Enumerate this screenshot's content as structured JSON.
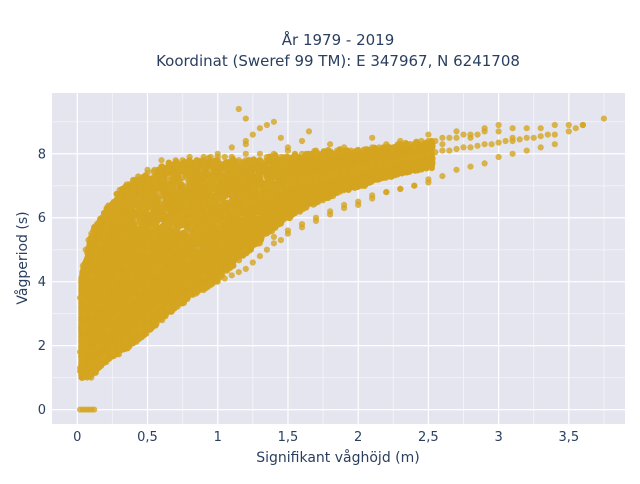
{
  "chart_data": {
    "type": "scatter",
    "title_line1": "År 1979 - 2019",
    "title_line2": "Koordinat (Sweref 99 TM): E 347967, N 6241708",
    "xlabel": "Signifikant våghöjd (m)",
    "ylabel": "Vågperiod (s)",
    "xlim": [
      -0.18,
      3.9
    ],
    "ylim": [
      -0.45,
      9.9
    ],
    "x_ticks": [
      0,
      0.5,
      1,
      1.5,
      2,
      2.5,
      3,
      3.5
    ],
    "x_tick_labels": [
      "0",
      "0,5",
      "1",
      "1,5",
      "2",
      "2,5",
      "3",
      "3,5"
    ],
    "y_ticks": [
      0,
      2,
      4,
      6,
      8
    ],
    "y_tick_labels": [
      "0",
      "2",
      "4",
      "6",
      "8"
    ],
    "grid": true,
    "marker_color": "#d4a520",
    "background_color": "#e5e5ef",
    "series": [
      {
        "values_x": [
          0.02,
          0.04,
          0.06,
          0.08,
          0.1,
          0.12,
          0.02,
          0.03,
          0.04,
          0.05,
          0.06,
          0.05,
          0.07,
          0.08,
          0.09,
          0.1,
          0.12,
          0.15,
          0.18,
          0.22,
          0.26,
          0.3,
          0.35,
          0.4,
          0.45,
          0.5,
          0.55,
          0.6,
          0.65,
          0.7,
          0.75,
          0.8,
          0.85,
          0.9,
          0.95,
          1.0,
          1.05,
          1.1,
          1.15,
          1.2,
          1.25,
          1.3,
          1.35,
          1.4,
          1.45,
          1.5,
          1.55,
          1.6,
          1.65,
          1.7,
          1.75,
          1.8,
          1.85,
          1.9,
          1.95,
          2.0,
          2.05,
          2.1,
          2.15,
          2.2,
          2.25,
          2.3,
          2.35,
          2.4,
          2.45,
          2.5,
          2.55,
          2.6,
          2.65,
          2.7,
          2.75,
          2.8,
          2.85,
          2.9,
          2.95,
          3.0,
          3.05,
          3.1,
          3.15,
          3.2,
          3.25,
          3.3,
          3.35,
          3.4,
          3.5,
          3.55,
          3.6,
          3.75,
          0.6,
          0.7,
          0.8,
          0.9,
          1.0,
          1.1,
          1.2,
          1.3,
          1.4,
          1.5,
          0.5,
          0.6,
          0.7,
          0.8,
          0.9,
          1.0,
          1.1,
          1.2,
          0.25,
          0.3,
          0.35,
          0.4,
          0.45,
          0.5,
          0.55,
          0.6,
          0.65,
          0.7,
          0.75,
          0.8,
          0.85,
          0.9,
          0.95,
          1.0,
          1.05,
          1.1,
          1.15,
          1.2,
          1.25,
          1.3,
          1.35,
          1.4,
          1.45,
          1.5,
          1.55,
          1.6,
          1.65,
          1.7,
          1.75,
          1.8,
          1.85,
          1.9,
          1.95,
          2.0,
          2.05,
          2.1,
          2.15,
          2.2,
          2.25,
          2.3,
          2.35,
          2.4,
          2.45,
          2.5,
          2.55,
          2.6,
          2.65,
          2.7,
          2.75,
          2.8,
          2.85,
          2.9,
          3.0,
          3.1,
          3.2,
          3.3,
          3.4,
          3.5,
          3.6,
          1.15,
          1.2,
          1.2,
          1.25,
          1.3,
          1.35,
          1.4,
          1.45,
          1.5,
          1.55,
          1.6,
          1.65,
          1.7,
          1.75,
          1.8,
          1.85,
          1.9,
          2.0,
          2.1,
          2.2,
          2.3,
          2.4,
          2.5,
          2.6,
          2.7,
          2.8,
          2.9,
          3.0,
          3.1,
          0.02,
          0.05,
          0.08,
          0.1,
          0.13,
          0.16,
          0.2,
          0.25,
          0.3,
          0.35,
          0.4,
          0.45,
          0.5,
          0.55,
          0.6,
          0.65,
          0.7,
          0.75,
          0.8,
          0.85,
          0.9,
          0.95,
          1.0,
          1.05,
          1.1,
          1.15,
          1.2,
          1.25,
          1.3,
          1.35,
          1.4,
          1.45,
          1.5,
          1.6,
          1.7,
          1.8,
          1.9,
          2.0,
          2.1,
          2.2,
          2.3,
          2.4,
          2.5,
          0.05,
          0.1,
          0.15,
          0.2,
          0.25,
          0.3,
          0.35,
          0.4,
          0.45,
          0.5,
          0.55,
          0.6,
          0.65,
          0.7,
          0.75,
          0.8,
          0.85,
          0.9,
          0.95,
          1.0,
          1.05,
          1.1,
          1.15,
          1.2,
          1.25,
          1.3,
          1.35,
          1.4,
          1.5,
          1.6,
          1.7,
          1.8,
          1.9,
          2.0,
          2.1,
          2.2,
          2.3,
          2.4,
          0.02,
          0.04,
          0.06,
          0.08,
          0.1,
          0.12,
          0.14,
          0.16,
          0.18,
          0.2,
          0.22,
          0.24,
          0.26,
          0.28,
          0.3,
          0.35,
          0.4,
          0.45,
          0.5,
          0.55,
          0.6,
          0.65,
          0.7,
          0.75,
          0.8,
          0.85,
          0.9,
          0.95,
          1.0,
          1.05,
          1.1,
          1.2,
          1.3,
          0.02,
          0.03,
          0.04,
          0.05,
          0.06,
          0.08,
          0.1,
          0.12,
          0.14,
          0.16,
          0.18,
          0.2,
          0.22,
          0.25,
          0.28,
          0.3,
          0.33,
          0.36,
          0.4,
          0.45,
          0.5,
          0.55,
          0.6,
          0.65,
          0.7,
          0.75,
          0.8,
          0.05,
          0.08,
          0.1,
          0.12,
          0.15,
          0.18,
          0.2,
          0.25,
          0.3,
          0.35,
          0.4,
          0.45,
          0.5,
          0.55,
          0.6,
          0.7,
          0.8,
          0.9,
          1.0,
          1.1,
          1.2,
          1.3,
          1.4,
          1.5,
          1.6,
          1.7,
          1.8,
          1.9,
          2.0,
          2.1,
          2.2,
          2.3,
          2.4,
          2.5,
          2.6,
          2.7,
          2.8,
          2.9,
          3.0,
          3.1,
          3.2,
          3.3,
          3.4
        ],
        "values_y": [
          0,
          0,
          0,
          0,
          0,
          0,
          1.3,
          1.5,
          1.7,
          1.9,
          2.1,
          1.2,
          1.0,
          1.1,
          1.3,
          1.5,
          1.8,
          2.0,
          2.3,
          2.5,
          2.8,
          3.0,
          3.3,
          3.5,
          3.8,
          4.0,
          4.3,
          4.5,
          4.8,
          5.0,
          5.2,
          5.4,
          5.6,
          5.8,
          5.9,
          6.0,
          6.1,
          6.2,
          6.3,
          6.4,
          6.5,
          6.6,
          6.7,
          6.8,
          6.9,
          7.0,
          7.05,
          7.1,
          7.15,
          7.2,
          7.25,
          7.3,
          7.35,
          7.4,
          7.45,
          7.5,
          7.55,
          7.6,
          7.65,
          7.7,
          7.75,
          7.8,
          7.85,
          7.9,
          7.95,
          8.0,
          8.05,
          8.1,
          8.1,
          8.15,
          8.2,
          8.2,
          8.25,
          8.3,
          8.3,
          8.35,
          8.4,
          8.4,
          8.45,
          8.5,
          8.5,
          8.55,
          8.6,
          8.6,
          8.7,
          8.8,
          8.9,
          9.1,
          7.8,
          7.8,
          7.9,
          7.9,
          7.8,
          7.7,
          7.6,
          7.8,
          8.0,
          8.1,
          7.5,
          7.6,
          7.7,
          7.7,
          7.8,
          8.0,
          8.2,
          8.4,
          6.0,
          6.2,
          6.4,
          6.6,
          6.8,
          7.0,
          7.1,
          7.2,
          7.3,
          7.4,
          7.5,
          7.5,
          7.6,
          7.6,
          7.6,
          7.7,
          7.7,
          7.7,
          7.8,
          7.8,
          7.8,
          7.8,
          7.9,
          7.9,
          7.9,
          7.9,
          7.9,
          8.0,
          8.0,
          8.0,
          8.0,
          8.0,
          8.1,
          8.1,
          8.1,
          8.1,
          8.1,
          8.2,
          8.2,
          8.2,
          8.2,
          8.3,
          8.3,
          8.3,
          8.4,
          8.4,
          8.4,
          8.5,
          8.5,
          8.5,
          8.6,
          8.6,
          8.6,
          8.7,
          8.7,
          8.8,
          8.8,
          8.8,
          8.9,
          8.9,
          8.9,
          9.4,
          9.1,
          8.3,
          8.6,
          8.8,
          8.9,
          9.0,
          8.5,
          8.2,
          8.0,
          8.4,
          8.7,
          8.1,
          7.9,
          8.3,
          8.0,
          8.2,
          8.1,
          8.5,
          8.3,
          8.4,
          8.2,
          8.6,
          8.3,
          8.7,
          8.5,
          8.8,
          8.9,
          8.5,
          1.2,
          1.3,
          1.1,
          1.0,
          1.2,
          1.4,
          1.6,
          1.8,
          1.9,
          2.1,
          2.3,
          2.5,
          2.6,
          2.8,
          3.0,
          3.2,
          3.3,
          3.5,
          3.6,
          3.7,
          3.8,
          3.9,
          4.0,
          4.1,
          4.2,
          4.3,
          4.4,
          4.6,
          4.8,
          5.0,
          5.2,
          5.3,
          5.5,
          5.7,
          5.9,
          6.1,
          6.3,
          6.4,
          6.6,
          6.8,
          6.9,
          7.0,
          7.1,
          2.5,
          3.0,
          3.3,
          3.6,
          3.9,
          4.2,
          4.5,
          4.8,
          5.0,
          5.2,
          5.4,
          5.6,
          5.8,
          6.0,
          6.1,
          6.2,
          6.3,
          6.4,
          6.5,
          6.6,
          6.7,
          6.7,
          6.8,
          6.8,
          6.9,
          6.9,
          7.0,
          7.0,
          7.1,
          7.2,
          7.3,
          7.4,
          7.5,
          7.6,
          7.7,
          7.7,
          7.8,
          7.9,
          3.5,
          4.5,
          5.0,
          5.3,
          5.5,
          5.7,
          5.8,
          5.9,
          6.0,
          6.1,
          6.2,
          6.3,
          6.4,
          6.5,
          6.6,
          6.8,
          7.0,
          7.2,
          7.4,
          7.5,
          7.6,
          7.7,
          7.7,
          7.8,
          7.8,
          7.8,
          7.8,
          7.9,
          7.9,
          7.9,
          7.9,
          8.0,
          8.0,
          1.8,
          2.2,
          2.6,
          3.0,
          3.4,
          3.8,
          4.2,
          4.6,
          4.9,
          5.2,
          5.5,
          5.7,
          5.9,
          6.1,
          6.3,
          6.4,
          6.5,
          6.6,
          6.8,
          7.0,
          7.2,
          7.3,
          7.4,
          7.5,
          7.6,
          7.7,
          7.7,
          1.1,
          1.2,
          1.3,
          1.4,
          1.5,
          1.6,
          1.7,
          1.9,
          2.1,
          2.3,
          2.5,
          2.7,
          2.9,
          3.1,
          3.3,
          3.6,
          3.9,
          4.2,
          4.5,
          4.8,
          5.0,
          5.2,
          5.4,
          5.6,
          5.8,
          6.0,
          6.2,
          6.4,
          6.5,
          6.7,
          6.8,
          6.9,
          7.0,
          7.2,
          7.3,
          7.5,
          7.6,
          7.7,
          7.9,
          8.0,
          8.1,
          8.2,
          8.3
        ]
      }
    ]
  }
}
